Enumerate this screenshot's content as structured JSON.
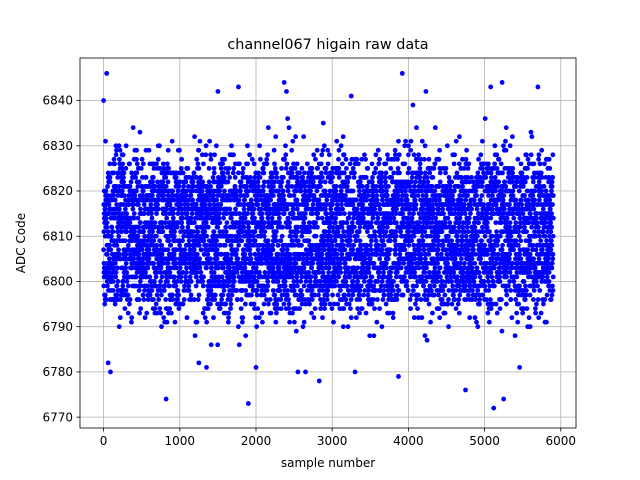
{
  "chart_data": {
    "type": "scatter",
    "title": "channel067 higain raw data",
    "xlabel": "sample number",
    "ylabel": "ADC Code",
    "xlim": [
      -310,
      6200
    ],
    "ylim": [
      6767.6,
      6849.4
    ],
    "xticks": [
      0,
      1000,
      2000,
      3000,
      4000,
      5000,
      6000
    ],
    "yticks": [
      6770,
      6780,
      6790,
      6800,
      6810,
      6820,
      6830,
      6840
    ],
    "grid": true,
    "marker_color": "#0000ff",
    "series": [
      {
        "n_points": 5904,
        "x_range": [
          0,
          5903
        ],
        "band_low": [
          6795,
          6810
        ],
        "band_high": [
          6810,
          6826
        ],
        "dense_core": [
          6790,
          6830
        ],
        "outliers": [
          {
            "x": 40,
            "y": 6846
          },
          {
            "x": 0,
            "y": 6840
          },
          {
            "x": 60,
            "y": 6782
          },
          {
            "x": 90,
            "y": 6780
          },
          {
            "x": 820,
            "y": 6774
          },
          {
            "x": 1250,
            "y": 6782
          },
          {
            "x": 1350,
            "y": 6781
          },
          {
            "x": 1500,
            "y": 6842
          },
          {
            "x": 1770,
            "y": 6843
          },
          {
            "x": 1900,
            "y": 6773
          },
          {
            "x": 2000,
            "y": 6781
          },
          {
            "x": 2370,
            "y": 6844
          },
          {
            "x": 2400,
            "y": 6842
          },
          {
            "x": 2550,
            "y": 6780
          },
          {
            "x": 2650,
            "y": 6780
          },
          {
            "x": 2830,
            "y": 6778
          },
          {
            "x": 3250,
            "y": 6841
          },
          {
            "x": 3300,
            "y": 6780
          },
          {
            "x": 3870,
            "y": 6779
          },
          {
            "x": 3920,
            "y": 6846
          },
          {
            "x": 4060,
            "y": 6839
          },
          {
            "x": 4230,
            "y": 6842
          },
          {
            "x": 4750,
            "y": 6776
          },
          {
            "x": 5080,
            "y": 6843
          },
          {
            "x": 5120,
            "y": 6772
          },
          {
            "x": 5230,
            "y": 6844
          },
          {
            "x": 5250,
            "y": 6774
          },
          {
            "x": 5460,
            "y": 6781
          },
          {
            "x": 5700,
            "y": 6843
          }
        ]
      }
    ]
  }
}
